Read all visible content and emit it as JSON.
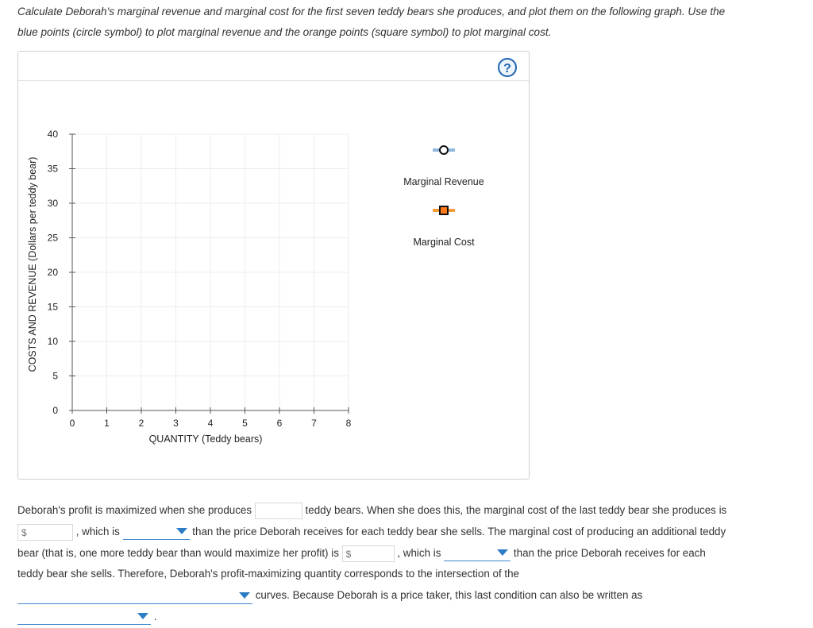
{
  "question": {
    "line1": "Calculate Deborah's marginal revenue and marginal cost for the first seven teddy bears she produces, and plot them on the following graph. Use the",
    "line2": "blue points (circle symbol) to plot marginal revenue and the orange points (square symbol) to plot marginal cost."
  },
  "help": {
    "symbol": "?"
  },
  "colors": {
    "mr_line": "#8fb8dc",
    "mc_line": "#f29b3a",
    "mc_fill": "#ff7a1a",
    "help": "#1b65b1",
    "select_arrow": "#2d7dc5"
  },
  "chart_data": {
    "type": "scatter",
    "xlabel": "QUANTITY (Teddy bears)",
    "ylabel": "COSTS AND REVENUE (Dollars per teddy bear)",
    "xlim": [
      0,
      8
    ],
    "ylim": [
      0,
      40
    ],
    "x_ticks": [
      "0",
      "1",
      "2",
      "3",
      "4",
      "5",
      "6",
      "7",
      "8"
    ],
    "y_ticks": [
      "0",
      "5",
      "10",
      "15",
      "20",
      "25",
      "30",
      "35",
      "40"
    ],
    "grid": true,
    "series": [
      {
        "name": "Marginal Revenue",
        "symbol": "circle",
        "values": []
      },
      {
        "name": "Marginal Cost",
        "symbol": "square",
        "values": []
      }
    ],
    "legend_position": "right"
  },
  "answer": {
    "s1": "Deborah's profit is maximized when she produces",
    "s2": "teddy bears. When she does this, the marginal cost of the last teddy bear she produces is",
    "currency": "$",
    "s3": ", which is",
    "s4": "than the price Deborah receives for each teddy bear she sells. The marginal cost of producing an additional teddy",
    "s5": "bear (that is, one more teddy bear than would maximize her profit) is",
    "s6": ", which is",
    "s7": "than the price Deborah receives for each",
    "s8": "teddy bear she sells. Therefore, Deborah's profit-maximizing quantity corresponds to the intersection of the",
    "s9": "curves. Because Deborah is a price taker, this last condition can also be written as",
    "s10": "."
  }
}
